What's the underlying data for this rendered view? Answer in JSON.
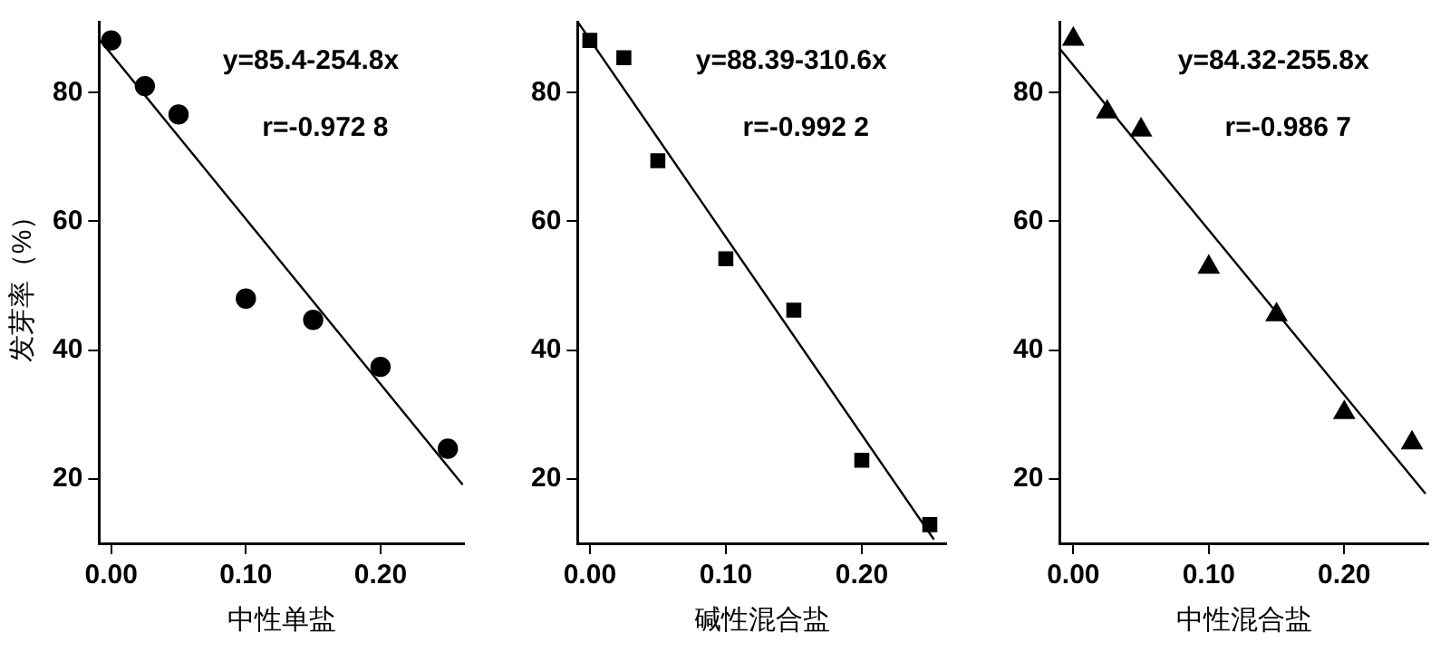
{
  "chart_data": [
    {
      "type": "scatter",
      "xlabel": "中性单盐",
      "ylabel": "发芽率（%）",
      "marker": "circle",
      "grid": false,
      "xlim": [
        -0.009,
        0.262
      ],
      "ylim": [
        10,
        91
      ],
      "xticks": [
        {
          "value": 0,
          "label": "0.00"
        },
        {
          "value": 0.1,
          "label": "0.10"
        },
        {
          "value": 0.2,
          "label": "0.20"
        }
      ],
      "yticks": [
        20,
        40,
        60,
        80
      ],
      "annotations": [
        "y=85.4-254.8x",
        "r=-0.972 8"
      ],
      "series": [
        {
          "color": "#000000",
          "x": [
            0,
            0.025,
            0.05,
            0.1,
            0.15,
            0.2,
            0.25
          ],
          "values": [
            88.1,
            81,
            76.6,
            48,
            44.7,
            37.4,
            24.7
          ]
        },
        {
          "type": "line",
          "marker": "none",
          "color": "#000000",
          "x": [
            -0.009,
            0.261
          ],
          "values": [
            88.3,
            19.1
          ]
        }
      ]
    },
    {
      "type": "scatter",
      "xlabel": "碱性混合盐",
      "marker": "square",
      "grid": false,
      "xlim": [
        -0.009,
        0.262
      ],
      "ylim": [
        10,
        91
      ],
      "xticks": [
        {
          "value": 0,
          "label": "0.00"
        },
        {
          "value": 0.1,
          "label": "0.10"
        },
        {
          "value": 0.2,
          "label": "0.20"
        }
      ],
      "yticks": [
        20,
        40,
        60,
        80
      ],
      "annotations": [
        "y=88.39-310.6x",
        "r=-0.992 2"
      ],
      "series": [
        {
          "color": "#000000",
          "x": [
            0,
            0.025,
            0.05,
            0.1,
            0.15,
            0.2,
            0.25
          ],
          "values": [
            88.1,
            85.4,
            69.4,
            54.2,
            46.2,
            22.9,
            12.9
          ]
        },
        {
          "type": "line",
          "marker": "none",
          "color": "#000000",
          "x": [
            -0.009,
            0.253
          ],
          "values": [
            91,
            10.6
          ]
        }
      ]
    },
    {
      "type": "scatter",
      "xlabel": "中性混合盐",
      "marker": "triangle",
      "grid": false,
      "xlim": [
        -0.01,
        0.262
      ],
      "ylim": [
        10,
        91
      ],
      "xticks": [
        {
          "value": 0,
          "label": "0.00"
        },
        {
          "value": 0.1,
          "label": "0.10"
        },
        {
          "value": 0.2,
          "label": "0.20"
        }
      ],
      "yticks": [
        20,
        40,
        60,
        80
      ],
      "annotations": [
        "y=84.32-255.8x",
        "r=-0.986 7"
      ],
      "series": [
        {
          "color": "#000000",
          "x": [
            0,
            0.025,
            0.05,
            0.1,
            0.15,
            0.2,
            0.25
          ],
          "values": [
            88.3,
            77,
            74.2,
            52.9,
            45.5,
            30.3,
            25.6
          ]
        },
        {
          "type": "line",
          "marker": "none",
          "color": "#000000",
          "x": [
            -0.01,
            0.26
          ],
          "values": [
            86.8,
            17.7
          ]
        }
      ]
    }
  ]
}
